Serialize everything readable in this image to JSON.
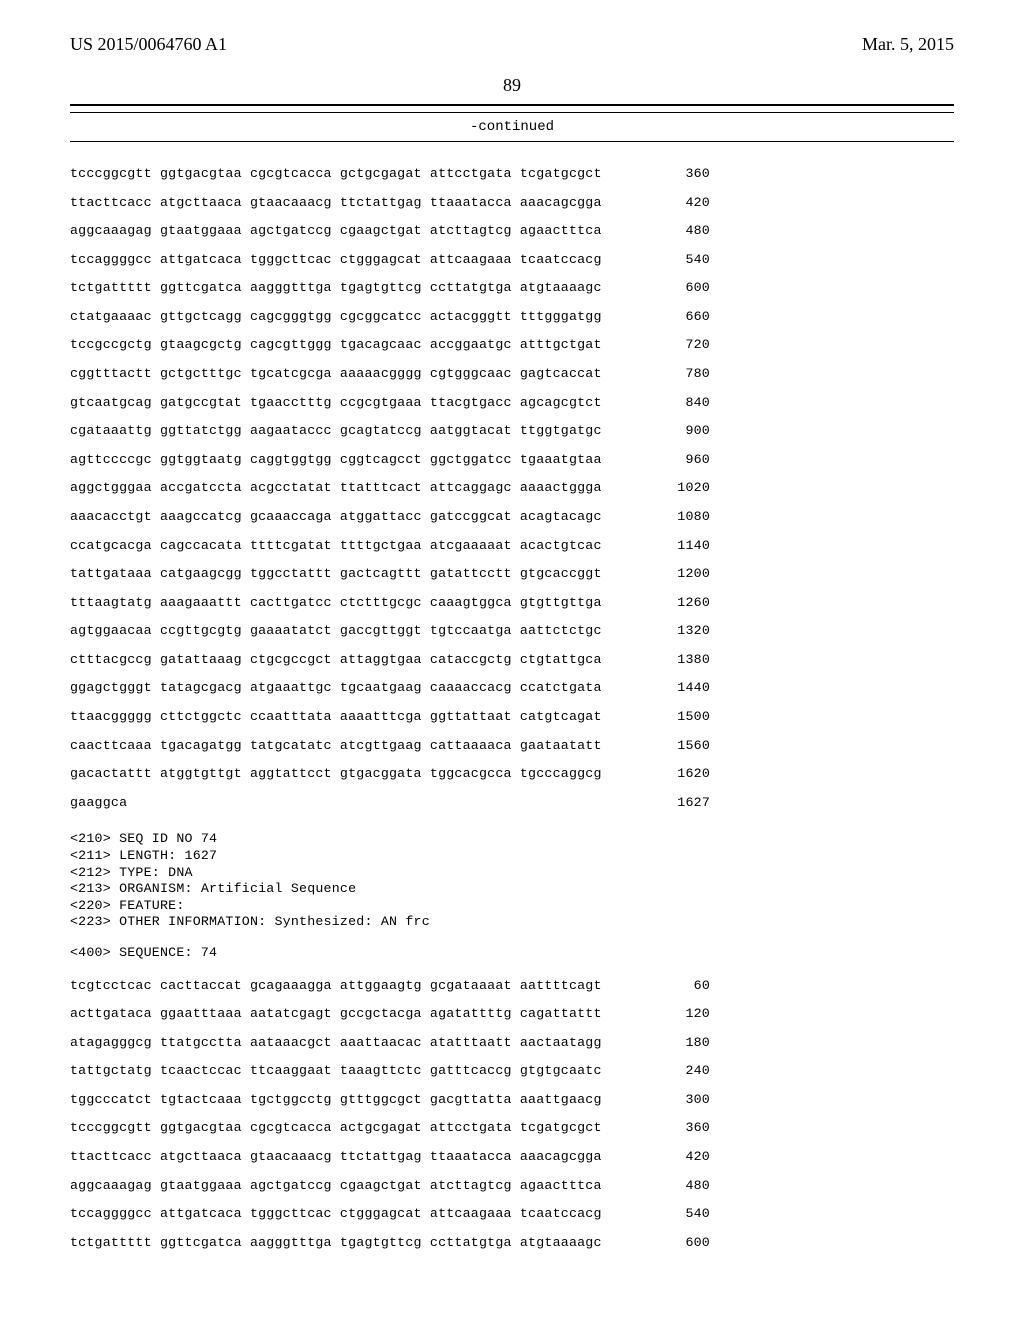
{
  "header": {
    "pub_number": "US 2015/0064760 A1",
    "pub_date": "Mar. 5, 2015"
  },
  "page_number": "89",
  "continued_label": "-continued",
  "seq1": [
    {
      "s": "tcccggcgtt ggtgacgtaa cgcgtcacca gctgcgagat attcctgata tcgatgcgct",
      "n": "360"
    },
    {
      "s": "ttacttcacc atgcttaaca gtaacaaacg ttctattgag ttaaatacca aaacagcgga",
      "n": "420"
    },
    {
      "s": "aggcaaagag gtaatggaaa agctgatccg cgaagctgat atcttagtcg agaactttca",
      "n": "480"
    },
    {
      "s": "tccaggggcc attgatcaca tgggcttcac ctgggagcat attcaagaaa tcaatccacg",
      "n": "540"
    },
    {
      "s": "tctgattttt ggttcgatca aagggtttga tgagtgttcg ccttatgtga atgtaaaagc",
      "n": "600"
    },
    {
      "s": "ctatgaaaac gttgctcagg cagcgggtgg cgcggcatcc actacgggtt tttgggatgg",
      "n": "660"
    },
    {
      "s": "tccgccgctg gtaagcgctg cagcgttggg tgacagcaac accggaatgc atttgctgat",
      "n": "720"
    },
    {
      "s": "cggtttactt gctgctttgc tgcatcgcga aaaaacgggg cgtgggcaac gagtcaccat",
      "n": "780"
    },
    {
      "s": "gtcaatgcag gatgccgtat tgaacctttg ccgcgtgaaa ttacgtgacc agcagcgtct",
      "n": "840"
    },
    {
      "s": "cgataaattg ggttatctgg aagaataccc gcagtatccg aatggtacat ttggtgatgc",
      "n": "900"
    },
    {
      "s": "agttccccgc ggtggtaatg caggtggtgg cggtcagcct ggctggatcc tgaaatgtaa",
      "n": "960"
    },
    {
      "s": "aggctgggaa accgatccta acgcctatat ttatttcact attcaggagc aaaactggga",
      "n": "1020"
    },
    {
      "s": "aaacacctgt aaagccatcg gcaaaccaga atggattacc gatccggcat acagtacagc",
      "n": "1080"
    },
    {
      "s": "ccatgcacga cagccacata ttttcgatat ttttgctgaa atcgaaaaat acactgtcac",
      "n": "1140"
    },
    {
      "s": "tattgataaa catgaagcgg tggcctattt gactcagttt gatattcctt gtgcaccggt",
      "n": "1200"
    },
    {
      "s": "tttaagtatg aaagaaattt cacttgatcc ctctttgcgc caaagtggca gtgttgttga",
      "n": "1260"
    },
    {
      "s": "agtggaacaa ccgttgcgtg gaaaatatct gaccgttggt tgtccaatga aattctctgc",
      "n": "1320"
    },
    {
      "s": "ctttacgccg gatattaaag ctgcgccgct attaggtgaa cataccgctg ctgtattgca",
      "n": "1380"
    },
    {
      "s": "ggagctgggt tatagcgacg atgaaattgc tgcaatgaag caaaaccacg ccatctgata",
      "n": "1440"
    },
    {
      "s": "ttaacggggg cttctggctc ccaatttata aaaatttcga ggttattaat catgtcagat",
      "n": "1500"
    },
    {
      "s": "caacttcaaa tgacagatgg tatgcatatc atcgttgaag cattaaaaca gaataatatt",
      "n": "1560"
    },
    {
      "s": "gacactattt atggtgttgt aggtattcct gtgacggata tggcacgcca tgcccaggcg",
      "n": "1620"
    },
    {
      "s": "gaaggca",
      "n": "1627"
    }
  ],
  "meta": [
    "<210> SEQ ID NO 74",
    "<211> LENGTH: 1627",
    "<212> TYPE: DNA",
    "<213> ORGANISM: Artificial Sequence",
    "<220> FEATURE:",
    "<223> OTHER INFORMATION: Synthesized: AN frc"
  ],
  "sequence_label": "<400> SEQUENCE: 74",
  "seq2": [
    {
      "s": "tcgtcctcac cacttaccat gcagaaagga attggaagtg gcgataaaat aattttcagt",
      "n": "60"
    },
    {
      "s": "acttgataca ggaatttaaa aatatcgagt gccgctacga agatattttg cagattattt",
      "n": "120"
    },
    {
      "s": "atagagggcg ttatgcctta aataaacgct aaattaacac atatttaatt aactaatagg",
      "n": "180"
    },
    {
      "s": "tattgctatg tcaactccac ttcaaggaat taaagttctc gatttcaccg gtgtgcaatc",
      "n": "240"
    },
    {
      "s": "tggcccatct tgtactcaaa tgctggcctg gtttggcgct gacgttatta aaattgaacg",
      "n": "300"
    },
    {
      "s": "tcccggcgtt ggtgacgtaa cgcgtcacca actgcgagat attcctgata tcgatgcgct",
      "n": "360"
    },
    {
      "s": "ttacttcacc atgcttaaca gtaacaaacg ttctattgag ttaaatacca aaacagcgga",
      "n": "420"
    },
    {
      "s": "aggcaaagag gtaatggaaa agctgatccg cgaagctgat atcttagtcg agaactttca",
      "n": "480"
    },
    {
      "s": "tccaggggcc attgatcaca tgggcttcac ctgggagcat attcaagaaa tcaatccacg",
      "n": "540"
    },
    {
      "s": "tctgattttt ggttcgatca aagggtttga tgagtgttcg ccttatgtga atgtaaaagc",
      "n": "600"
    }
  ]
}
